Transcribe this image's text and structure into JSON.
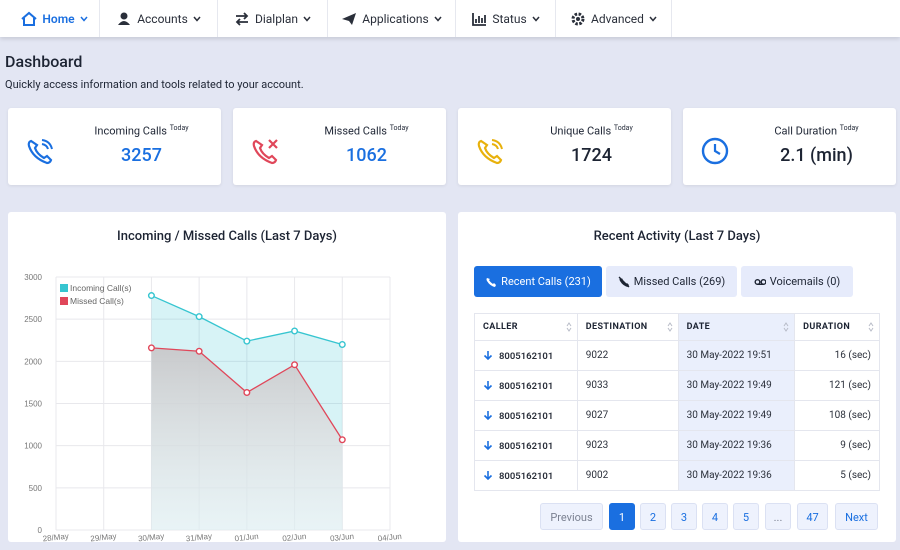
{
  "nav": [
    "Home",
    "Accounts",
    "Dialplan",
    "Applications",
    "Status",
    "Advanced"
  ],
  "header": {
    "title": "Dashboard",
    "subtitle": "Quickly access information and tools related to your account."
  },
  "stats": [
    {
      "label": "Incoming Calls",
      "sup": "Today",
      "value": 3257
    },
    {
      "label": "Missed Calls",
      "sup": "Today",
      "value": 1062
    },
    {
      "label": "Unique Calls",
      "sup": "Today",
      "value": 1724
    },
    {
      "label": "Call Duration",
      "sup": "Today",
      "value": "2.1 (min)"
    }
  ],
  "chart": {
    "type": "line",
    "title": "Incoming / Missed Calls (Last 7 Days)",
    "categories": [
      "28/May",
      "29/May",
      "30/May",
      "31/May",
      "01/Jun",
      "02/Jun",
      "03/Jun",
      "04/Jun"
    ],
    "series": [
      {
        "name": "Incoming Call(s)",
        "color": "#36c5d0",
        "values": [
          null,
          null,
          2780,
          2530,
          2240,
          2360,
          2200,
          null
        ]
      },
      {
        "name": "Missed Call(s)",
        "color": "#e0475a",
        "values": [
          null,
          null,
          2160,
          2120,
          1630,
          1960,
          1070,
          null
        ]
      }
    ],
    "ylim": [
      0,
      3000
    ],
    "yticks": [
      0,
      500,
      1000,
      1500,
      2000,
      2500,
      3000
    ],
    "grid": true,
    "legend": "top-left"
  },
  "activity": {
    "title": "Recent Activity (Last 7 Days)",
    "tabs": [
      "Recent Calls (231)",
      "Missed Calls (269)",
      "Voicemails (0)"
    ],
    "columns": [
      "CALLER",
      "DESTINATION",
      "DATE",
      "DURATION"
    ],
    "rows": [
      [
        "8005162101",
        "9022",
        "30 May-2022 19:51",
        "16 (sec)"
      ],
      [
        "8005162101",
        "9033",
        "30 May-2022 19:49",
        "121 (sec)"
      ],
      [
        "8005162101",
        "9027",
        "30 May-2022 19:49",
        "108 (sec)"
      ],
      [
        "8005162101",
        "9023",
        "30 May-2022 19:36",
        "9 (sec)"
      ],
      [
        "8005162101",
        "9002",
        "30 May-2022 19:36",
        "5 (sec)"
      ]
    ],
    "pagination": [
      "Previous",
      "1",
      "2",
      "3",
      "4",
      "5",
      "...",
      "47",
      "Next"
    ]
  }
}
